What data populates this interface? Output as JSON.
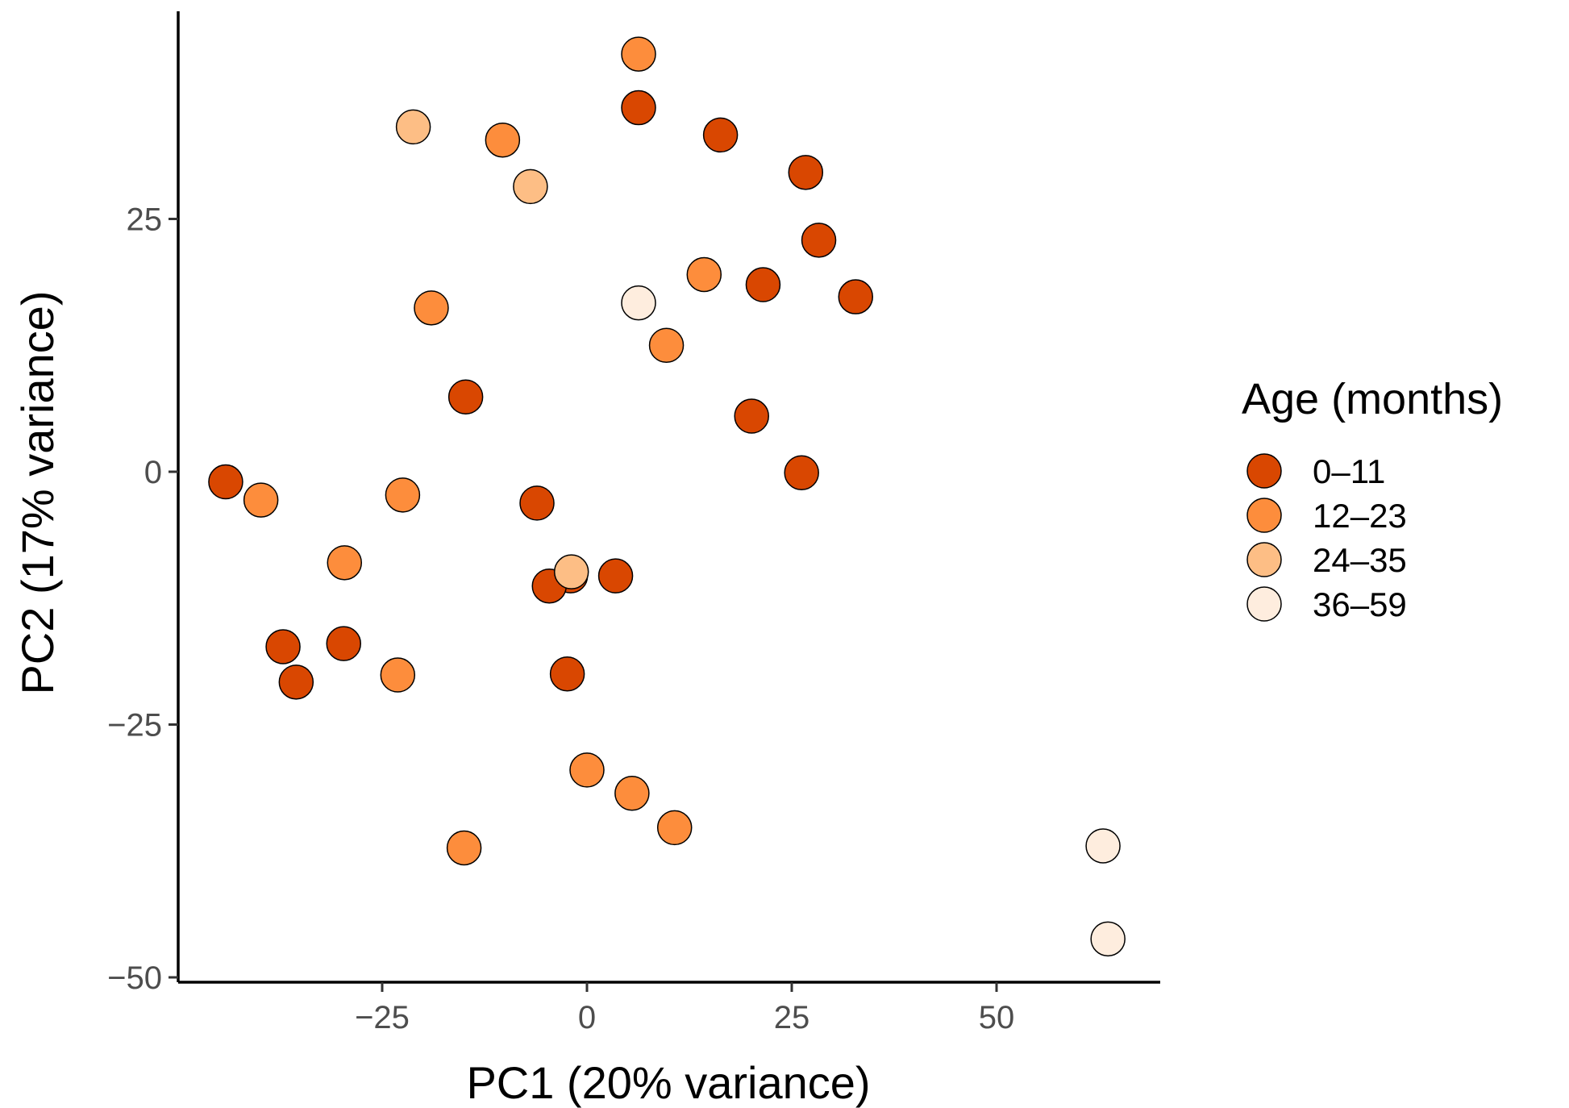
{
  "chart_data": {
    "type": "scatter",
    "xlabel": "PC1 (20% variance)",
    "ylabel": "PC2 (17% variance)",
    "xlim": [
      -50,
      70
    ],
    "ylim": [
      -50,
      46
    ],
    "x_ticks": [
      -25,
      0,
      25,
      50
    ],
    "x_tick_labels": [
      "−25",
      "0",
      "25",
      "50"
    ],
    "y_ticks": [
      -50,
      -25,
      0,
      25
    ],
    "y_tick_labels": [
      "−50",
      "−25",
      "0",
      "25"
    ],
    "grid": false,
    "legend": {
      "title": "Age (months)",
      "placement": "right"
    },
    "series": [
      {
        "name": "0–11",
        "color": "#D94701",
        "points": [
          {
            "x": 6.3,
            "y": 36
          },
          {
            "x": 16.3,
            "y": 33.3
          },
          {
            "x": 26.7,
            "y": 29.6
          },
          {
            "x": 28.3,
            "y": 22.9
          },
          {
            "x": 21.5,
            "y": 18.5
          },
          {
            "x": 32.8,
            "y": 17.3
          },
          {
            "x": -14.8,
            "y": 7.4
          },
          {
            "x": 20.1,
            "y": 5.5
          },
          {
            "x": 26.2,
            "y": -0.1
          },
          {
            "x": -44.1,
            "y": -1
          },
          {
            "x": -6.1,
            "y": -3.1
          },
          {
            "x": -2,
            "y": -10.3
          },
          {
            "x": 3.5,
            "y": -10.3
          },
          {
            "x": -4.6,
            "y": -11.3
          },
          {
            "x": -37.1,
            "y": -17.3
          },
          {
            "x": -29.7,
            "y": -17
          },
          {
            "x": -35.5,
            "y": -20.8
          },
          {
            "x": -2.4,
            "y": -20
          }
        ]
      },
      {
        "name": "12–23",
        "color": "#FD8D3C",
        "points": [
          {
            "x": 6.3,
            "y": 41.3
          },
          {
            "x": -10.3,
            "y": 32.8
          },
          {
            "x": 14.3,
            "y": 19.5
          },
          {
            "x": -19,
            "y": 16.2
          },
          {
            "x": 9.7,
            "y": 12.5
          },
          {
            "x": -39.8,
            "y": -2.8
          },
          {
            "x": -22.5,
            "y": -2.3
          },
          {
            "x": -29.6,
            "y": -9
          },
          {
            "x": -23.1,
            "y": -20.1
          },
          {
            "x": 0,
            "y": -29.5
          },
          {
            "x": 5.5,
            "y": -31.8
          },
          {
            "x": 10.7,
            "y": -35.2
          },
          {
            "x": -15,
            "y": -37.2
          }
        ]
      },
      {
        "name": "24–35",
        "color": "#FDBE85",
        "points": [
          {
            "x": -21.2,
            "y": 34.1
          },
          {
            "x": -6.9,
            "y": 28.2
          },
          {
            "x": -1.9,
            "y": -9.9
          }
        ]
      },
      {
        "name": "36–59",
        "color": "#FEEDDE",
        "points": [
          {
            "x": 6.3,
            "y": 16.7
          },
          {
            "x": 63,
            "y": -37
          },
          {
            "x": 63.6,
            "y": -46.2
          }
        ]
      }
    ]
  }
}
